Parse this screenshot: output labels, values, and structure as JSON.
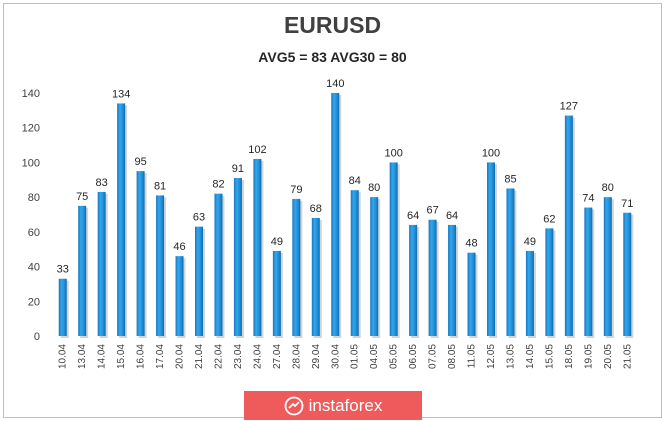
{
  "chart_data": {
    "type": "bar",
    "title": "EURUSD",
    "subtitle": "AVG5 = 83 AVG30 = 80",
    "categories": [
      "10.04",
      "13.04",
      "14.04",
      "15.04",
      "16.04",
      "17.04",
      "20.04",
      "21.04",
      "22.04",
      "23.04",
      "24.04",
      "27.04",
      "28.04",
      "29.04",
      "30.04",
      "01.05",
      "04.05",
      "05.05",
      "06.05",
      "07.05",
      "08.05",
      "11.05",
      "12.05",
      "13.05",
      "14.05",
      "15.05",
      "18.05",
      "19.05",
      "20.05",
      "21.05"
    ],
    "values": [
      33,
      75,
      83,
      134,
      95,
      81,
      46,
      63,
      82,
      91,
      102,
      49,
      79,
      68,
      140,
      84,
      80,
      100,
      64,
      67,
      64,
      48,
      100,
      85,
      49,
      62,
      127,
      74,
      80,
      71
    ],
    "ylim": [
      0,
      140
    ],
    "yticks": [
      0,
      20,
      40,
      60,
      80,
      100,
      120,
      140
    ],
    "grid": false,
    "data_labels": true,
    "bar_color": "#1e8fd8"
  },
  "watermark": {
    "text": "instaforex",
    "icon": "instaforex-logo-icon",
    "color": "#ef5a5a"
  }
}
